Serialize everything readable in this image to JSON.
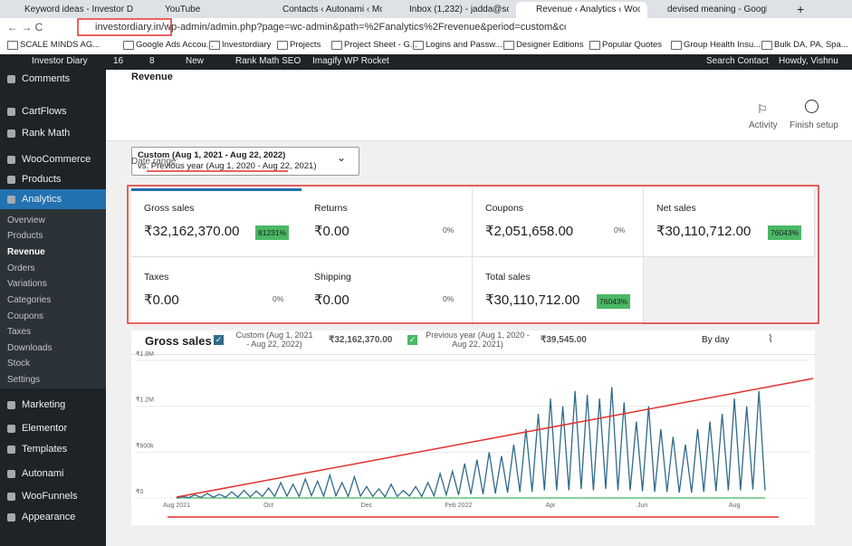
{
  "browser": {
    "tabs": [
      "Keyword ideas - Investor D",
      "YouTube",
      "Contacts ‹ Autonami ‹ Mon",
      "Inbox (1,232) - jadda@scal",
      "Revenue ‹ Analytics ‹ Woo",
      "devised meaning - Google"
    ],
    "url": "investordiary.in/wp-admin/admin.php?page=wc-admin&path=%2Fanalytics%2Frevenue&period=custom&compare=previous...",
    "bookmarks": [
      "SCALE MINDS AG...",
      "Google Ads Accou...",
      "Investordiary",
      "Projects",
      "Project Sheet - G...",
      "Logins and Passw...",
      "Designer Editions",
      "Popular Quotes",
      "Group Health Insu...",
      "Bulk DA, PA, Spa..."
    ]
  },
  "admin_bar": {
    "site": "Investor Diary",
    "updates": "16",
    "comments": "8",
    "new": "New",
    "items": [
      "Rank Math SEO",
      "Imagify",
      "WP Rocket"
    ],
    "search": "Search Contact",
    "user": "Howdy, Vishnu"
  },
  "sidebar": {
    "menu": [
      "Comments",
      "CartFlows",
      "Rank Math",
      "WooCommerce",
      "Products",
      "Analytics"
    ],
    "submenu": [
      "Overview",
      "Products",
      "Revenue",
      "Orders",
      "Variations",
      "Categories",
      "Coupons",
      "Taxes",
      "Downloads",
      "Stock",
      "Settings"
    ],
    "more": [
      "Marketing",
      "Elementor",
      "Templates",
      "Autonami",
      "WooFunnels",
      "Appearance"
    ]
  },
  "header": {
    "title": "Revenue",
    "actions": [
      "Activity",
      "Finish setup"
    ]
  },
  "date_range": {
    "label": "Date range:",
    "line1": "Custom (Aug 1, 2021 - Aug 22, 2022)",
    "line2": "vs. Previous year (Aug 1, 2020 - Aug 22, 2021)"
  },
  "stats": [
    {
      "label": "Gross sales",
      "value": "₹32,162,370.00",
      "delta": "81231%"
    },
    {
      "label": "Returns",
      "value": "₹0.00",
      "delta": "0%"
    },
    {
      "label": "Coupons",
      "value": "₹2,051,658.00",
      "delta": "0%"
    },
    {
      "label": "Net sales",
      "value": "₹30,110,712.00",
      "delta": "76043%"
    },
    {
      "label": "Taxes",
      "value": "₹0.00",
      "delta": "0%"
    },
    {
      "label": "Shipping",
      "value": "₹0.00",
      "delta": "0%"
    },
    {
      "label": "Total sales",
      "value": "₹30,110,712.00",
      "delta": "76043%"
    }
  ],
  "chart_data": {
    "type": "line",
    "title": "Gross sales",
    "interval": "By day",
    "categories": [
      "Aug 2021",
      null,
      null,
      null,
      null,
      null,
      null,
      null,
      null,
      null,
      null,
      null,
      null,
      null,
      null,
      "Oct",
      null,
      null,
      null,
      null,
      null,
      null,
      null,
      null,
      null,
      null,
      null,
      null,
      null,
      null,
      null,
      "Dec",
      null,
      null,
      null,
      null,
      null,
      null,
      null,
      null,
      null,
      null,
      null,
      null,
      null,
      null,
      "Feb 2022",
      null,
      null,
      null,
      null,
      null,
      null,
      null,
      null,
      null,
      null,
      null,
      null,
      null,
      null,
      "Apr",
      null,
      null,
      null,
      null,
      null,
      null,
      null,
      null,
      null,
      null,
      null,
      null,
      null,
      null,
      "Jun",
      null,
      null,
      null,
      null,
      null,
      null,
      null,
      null,
      null,
      null,
      null,
      null,
      null,
      null,
      "Aug",
      null,
      null,
      null,
      null,
      null
    ],
    "series": [
      {
        "name": "Custom (Aug 1, 2021 - Aug 22, 2022)",
        "total": "₹32,162,370.00",
        "color": "#2f6b8a",
        "values": [
          0,
          20000,
          5000,
          40000,
          8000,
          60000,
          10000,
          50000,
          10000,
          80000,
          12000,
          100000,
          15000,
          90000,
          20000,
          130000,
          20000,
          200000,
          25000,
          180000,
          20000,
          250000,
          30000,
          220000,
          25000,
          300000,
          30000,
          200000,
          20000,
          280000,
          25000,
          150000,
          20000,
          120000,
          15000,
          180000,
          20000,
          100000,
          25000,
          150000,
          20000,
          200000,
          30000,
          320000,
          40000,
          350000,
          40000,
          450000,
          50000,
          500000,
          50000,
          600000,
          60000,
          550000,
          70000,
          700000,
          80000,
          900000,
          80000,
          1100000,
          100000,
          1300000,
          100000,
          1200000,
          100000,
          1400000,
          120000,
          1350000,
          100000,
          1300000,
          120000,
          1450000,
          100000,
          1250000,
          100000,
          1000000,
          90000,
          1200000,
          80000,
          900000,
          80000,
          800000,
          70000,
          700000,
          70000,
          900000,
          80000,
          1000000,
          90000,
          1100000,
          100000,
          1300000,
          100000,
          1200000,
          110000,
          1400000,
          100000
        ]
      },
      {
        "name": "Previous year (Aug 1, 2020 - Aug 22, 2021)",
        "total": "₹39,545.00",
        "color": "#4ab866",
        "values": [
          0,
          800,
          0,
          800,
          0,
          800,
          0,
          800,
          0,
          800,
          0,
          800,
          0,
          800,
          0,
          800,
          0,
          800,
          0,
          800,
          0,
          800,
          0,
          800,
          0,
          800,
          0,
          800,
          0,
          800,
          0,
          800,
          0,
          800,
          0,
          800,
          0,
          800,
          0,
          800,
          0,
          800,
          0,
          800,
          0,
          800,
          0,
          800,
          0,
          800,
          0,
          800,
          0,
          800,
          0,
          800,
          0,
          800,
          0,
          800,
          0,
          800,
          0,
          800,
          0,
          800,
          0,
          800,
          0,
          800,
          0,
          800,
          0,
          800,
          0,
          800,
          0,
          800,
          0,
          800,
          0,
          800,
          0,
          800,
          0,
          800,
          0,
          800,
          0,
          800,
          0,
          800,
          0,
          800,
          0,
          800,
          0
        ]
      }
    ],
    "ylim": [
      0,
      1800000
    ],
    "yticks": [
      {
        "value": 0,
        "label": "₹0"
      },
      {
        "value": 600000,
        "label": "₹600k"
      },
      {
        "value": 1200000,
        "label": "₹1.2M"
      },
      {
        "value": 1800000,
        "label": "₹1.8M"
      }
    ],
    "grid": true
  }
}
